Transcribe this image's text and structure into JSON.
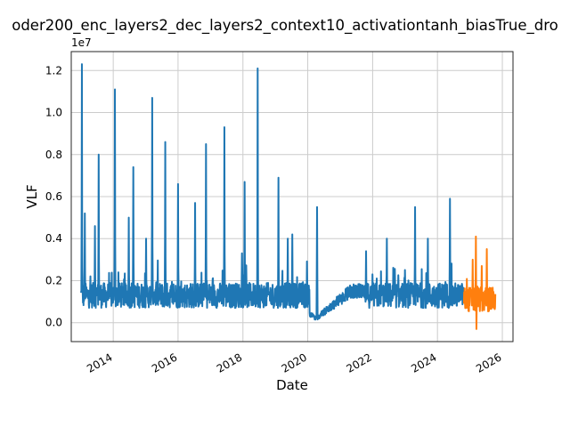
{
  "chart_data": {
    "type": "line",
    "title": "oder200_enc_layers2_dec_layers2_context10_activationtanh_biasTrue_dro",
    "xlabel": "Date",
    "ylabel": "VLF",
    "y_offset_label": "1e7",
    "xlim": [
      "2012-09-15",
      "2026-05-01"
    ],
    "ylim": [
      -0.09,
      1.29
    ],
    "y_unit_multiplier": 10000000,
    "grid": true,
    "legend": "none",
    "x_ticks": [
      "2014",
      "2016",
      "2018",
      "2020",
      "2022",
      "2024",
      "2026"
    ],
    "y_ticks": [
      0.0,
      0.2,
      0.4,
      0.6,
      0.8,
      1.0,
      1.2
    ],
    "y_tick_labels": [
      "0.0",
      "0.2",
      "0.4",
      "0.6",
      "0.8",
      "1.0",
      "1.2"
    ],
    "series": [
      {
        "color": "#1f77b4",
        "x_start": "2013-01-01",
        "x_end": "2024-10-25",
        "baseline": 0.13,
        "peaks": [
          {
            "x": "2013-01-12",
            "y": 1.23
          },
          {
            "x": "2013-02-15",
            "y": 0.52
          },
          {
            "x": "2013-06-10",
            "y": 0.46
          },
          {
            "x": "2013-07-20",
            "y": 0.8
          },
          {
            "x": "2014-01-20",
            "y": 1.11
          },
          {
            "x": "2014-06-25",
            "y": 0.5
          },
          {
            "x": "2014-08-15",
            "y": 0.74
          },
          {
            "x": "2015-01-05",
            "y": 0.4
          },
          {
            "x": "2015-03-15",
            "y": 1.07
          },
          {
            "x": "2015-08-10",
            "y": 0.86
          },
          {
            "x": "2016-01-01",
            "y": 0.66
          },
          {
            "x": "2016-07-10",
            "y": 0.57
          },
          {
            "x": "2016-11-10",
            "y": 0.85
          },
          {
            "x": "2017-06-05",
            "y": 0.93
          },
          {
            "x": "2017-12-20",
            "y": 0.33
          },
          {
            "x": "2018-01-20",
            "y": 0.67
          },
          {
            "x": "2018-06-15",
            "y": 1.21
          },
          {
            "x": "2019-02-05",
            "y": 0.69
          },
          {
            "x": "2019-05-20",
            "y": 0.4
          },
          {
            "x": "2019-07-10",
            "y": 0.42
          },
          {
            "x": "2020-04-15",
            "y": 0.55
          },
          {
            "x": "2021-10-20",
            "y": 0.34
          },
          {
            "x": "2022-06-10",
            "y": 0.4
          },
          {
            "x": "2023-04-25",
            "y": 0.55
          },
          {
            "x": "2023-09-15",
            "y": 0.4
          },
          {
            "x": "2024-05-20",
            "y": 0.59
          }
        ],
        "dip": {
          "from": "2020-01-20",
          "to": "2021-10-01",
          "min": 0.0
        }
      },
      {
        "color": "#ff7f0e",
        "x_start": "2024-10-25",
        "x_end": "2025-10-15",
        "baseline": 0.11,
        "peaks": [
          {
            "x": "2025-03-10",
            "y": 0.41
          },
          {
            "x": "2025-02-01",
            "y": 0.3
          },
          {
            "x": "2025-07-10",
            "y": 0.35
          },
          {
            "x": "2025-05-15",
            "y": 0.27
          }
        ],
        "troughs": [
          {
            "x": "2025-03-15",
            "y": -0.03
          }
        ]
      }
    ]
  }
}
